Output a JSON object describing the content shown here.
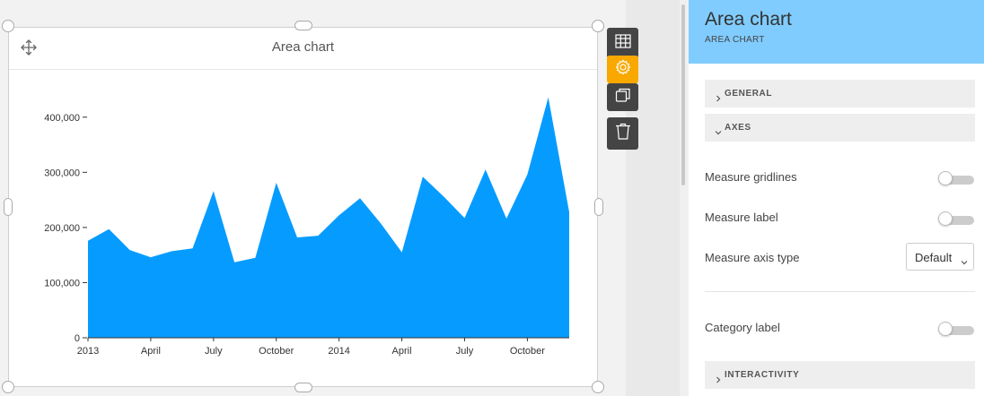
{
  "canvas": {
    "card_title": "Area chart",
    "toolbar": [
      {
        "name": "table-view-button",
        "icon": "table-icon"
      },
      {
        "name": "settings-button",
        "icon": "gear-icon",
        "active": true
      },
      {
        "name": "duplicate-button",
        "icon": "duplicate-icon"
      },
      {
        "name": "delete-button",
        "icon": "trash-icon"
      }
    ]
  },
  "chart_data": {
    "type": "area",
    "title": "Area chart",
    "color": "#069cff",
    "ylim": [
      0,
      450000
    ],
    "y_ticks": [
      "0",
      "100,000",
      "200,000",
      "300,000",
      "400,000"
    ],
    "x_ticks": [
      "2013",
      "April",
      "July",
      "October",
      "2014",
      "April",
      "July",
      "October"
    ],
    "x": [
      "2013-01",
      "2013-02",
      "2013-03",
      "2013-04",
      "2013-05",
      "2013-06",
      "2013-07",
      "2013-08",
      "2013-09",
      "2013-10",
      "2013-11",
      "2013-12",
      "2014-01",
      "2014-02",
      "2014-03",
      "2014-04",
      "2014-05",
      "2014-06",
      "2014-07",
      "2014-08",
      "2014-09",
      "2014-10",
      "2014-11",
      "2014-12"
    ],
    "values": [
      176000,
      197000,
      159000,
      146000,
      157000,
      162000,
      266000,
      137000,
      145000,
      281000,
      182000,
      185000,
      222000,
      253000,
      207000,
      155000,
      292000,
      256000,
      217000,
      305000,
      216000,
      296000,
      436000,
      228000
    ]
  },
  "panel": {
    "title": "Area chart",
    "subtitle": "AREA CHART",
    "sections": {
      "general": "GENERAL",
      "axes": "AXES",
      "interactivity": "INTERACTIVITY"
    },
    "rows": {
      "measure_gridlines": "Measure gridlines",
      "measure_label": "Measure label",
      "measure_axis_type": "Measure axis type",
      "measure_axis_type_value": "Default",
      "category_label": "Category label"
    }
  }
}
